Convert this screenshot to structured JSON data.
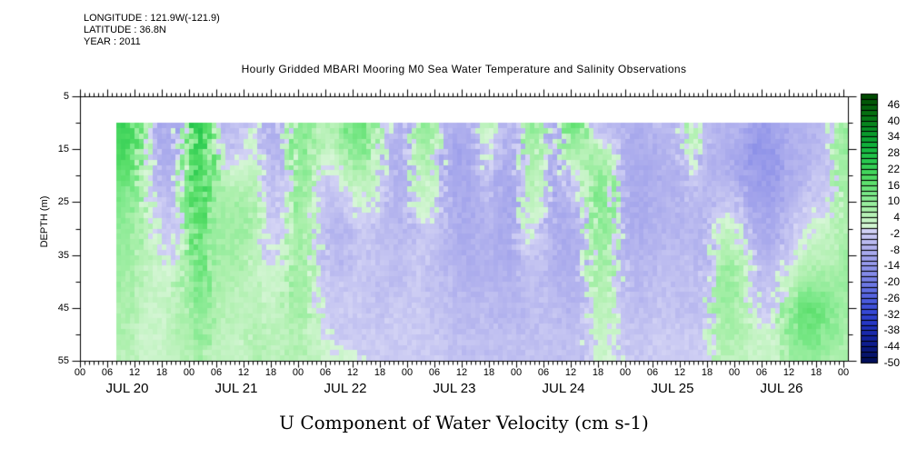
{
  "header": {
    "longitude": "LONGITUDE : 121.9W(-121.9)",
    "latitude": "LATITUDE : 36.8N",
    "year": "YEAR : 2011"
  },
  "title": "Hourly Gridded MBARI Mooring M0 Sea Water Temperature and Salinity Observations",
  "footer_title": "U Component of Water Velocity (cm s-1)",
  "axes": {
    "y_label": "DEPTH (m)",
    "y_ticks": [
      5,
      15,
      25,
      35,
      45,
      55
    ],
    "y_minor_ticks": [
      10,
      20,
      30,
      40,
      50
    ],
    "x_time_labels": [
      "00",
      "06",
      "12",
      "18"
    ],
    "x_final_label": "00",
    "x_date_labels": [
      "JUL 20",
      "JUL 21",
      "JUL 22",
      "JUL 23",
      "JUL 24",
      "JUL 25",
      "JUL 26"
    ]
  },
  "colorbar": {
    "min": -50,
    "max": 50,
    "segment_step": 2,
    "labels": [
      "46",
      "40",
      "34",
      "28",
      "22",
      "16",
      "10",
      "4",
      "-2",
      "-8",
      "-14",
      "-20",
      "-26",
      "-32",
      "-38",
      "-44",
      "-50"
    ]
  },
  "palette": {
    "stops": [
      [
        -50,
        "#000d52"
      ],
      [
        -42,
        "#101f96"
      ],
      [
        -36,
        "#2233c0"
      ],
      [
        -30,
        "#3a4cd8"
      ],
      [
        -24,
        "#5a68e0"
      ],
      [
        -18,
        "#7e85e6"
      ],
      [
        -12,
        "#9a9cea"
      ],
      [
        -6,
        "#b4b4ee"
      ],
      [
        -0.01,
        "#d6d6f5"
      ],
      [
        0,
        "#d8f6d8"
      ],
      [
        6,
        "#aef0ae"
      ],
      [
        12,
        "#7fe98c"
      ],
      [
        18,
        "#55dd66"
      ],
      [
        24,
        "#2ecc52"
      ],
      [
        30,
        "#12b53e"
      ],
      [
        36,
        "#089428"
      ],
      [
        42,
        "#077413"
      ],
      [
        50,
        "#004500"
      ]
    ]
  },
  "chart_data": {
    "type": "heatmap",
    "title": "U Component of Water Velocity (cm s-1)",
    "ylabel": "DEPTH (m)",
    "unit": "cm s-1",
    "ylim": [
      5,
      55
    ],
    "x_axis": "hours since JUL 20 2011 00:00",
    "xlim": [
      0,
      169
    ],
    "x_hours_start": 8,
    "x_hours_step": 3,
    "depths": [
      10,
      15,
      20,
      25,
      30,
      35,
      40,
      45,
      50,
      55
    ],
    "values": [
      [
        22,
        20,
        16,
        12,
        10,
        8,
        8,
        6,
        6,
        4
      ],
      [
        20,
        18,
        14,
        10,
        8,
        8,
        6,
        6,
        4,
        4
      ],
      [
        6,
        4,
        2,
        4,
        4,
        4,
        4,
        2,
        2,
        2
      ],
      [
        -8,
        -8,
        -6,
        -4,
        -2,
        2,
        2,
        2,
        2,
        2
      ],
      [
        -10,
        -8,
        -6,
        -4,
        -2,
        -2,
        2,
        4,
        4,
        4
      ],
      [
        8,
        10,
        10,
        10,
        8,
        8,
        8,
        6,
        6,
        4
      ],
      [
        26,
        24,
        22,
        20,
        18,
        16,
        14,
        12,
        10,
        8
      ],
      [
        10,
        8,
        8,
        8,
        8,
        6,
        6,
        6,
        4,
        4
      ],
      [
        -6,
        -4,
        2,
        6,
        8,
        8,
        6,
        4,
        4,
        2
      ],
      [
        -4,
        -2,
        4,
        8,
        8,
        6,
        4,
        4,
        2,
        2
      ],
      [
        2,
        2,
        4,
        6,
        6,
        4,
        4,
        4,
        6,
        6
      ],
      [
        -8,
        -6,
        -4,
        -4,
        -2,
        -2,
        2,
        2,
        4,
        4
      ],
      [
        -6,
        -6,
        -4,
        -2,
        -2,
        2,
        2,
        4,
        4,
        4
      ],
      [
        12,
        12,
        10,
        10,
        8,
        8,
        8,
        8,
        6,
        6
      ],
      [
        10,
        8,
        8,
        6,
        6,
        6,
        6,
        6,
        4,
        4
      ],
      [
        4,
        2,
        -2,
        -4,
        -4,
        -4,
        -2,
        -2,
        2,
        2
      ],
      [
        6,
        4,
        -2,
        -4,
        -6,
        -6,
        -4,
        -2,
        -2,
        2
      ],
      [
        14,
        10,
        4,
        -2,
        -4,
        -4,
        -2,
        -2,
        -2,
        2
      ],
      [
        16,
        12,
        6,
        2,
        -2,
        -2,
        -2,
        -2,
        -2,
        -2
      ],
      [
        6,
        4,
        2,
        -2,
        -4,
        -4,
        -4,
        -4,
        -2,
        -2
      ],
      [
        -4,
        -6,
        -6,
        -6,
        -4,
        -4,
        -4,
        -2,
        -2,
        -2
      ],
      [
        -8,
        -8,
        -8,
        -6,
        -6,
        -4,
        -4,
        -2,
        -2,
        -2
      ],
      [
        8,
        6,
        4,
        2,
        -2,
        -2,
        -2,
        -2,
        -2,
        -2
      ],
      [
        10,
        8,
        4,
        2,
        -2,
        -4,
        -4,
        -4,
        -2,
        -2
      ],
      [
        -6,
        -8,
        -8,
        -6,
        -6,
        -6,
        -4,
        -4,
        -4,
        -2
      ],
      [
        -8,
        -10,
        -10,
        -8,
        -8,
        -6,
        -6,
        -4,
        -4,
        -4
      ],
      [
        -6,
        -8,
        -8,
        -8,
        -8,
        -8,
        -6,
        -6,
        -4,
        -4
      ],
      [
        4,
        2,
        -2,
        -4,
        -6,
        -6,
        -6,
        -4,
        -4,
        -4
      ],
      [
        -4,
        -6,
        -8,
        -8,
        -8,
        -8,
        -6,
        -6,
        -4,
        -4
      ],
      [
        -6,
        -8,
        -10,
        -10,
        -8,
        -8,
        -6,
        -6,
        -4,
        -4
      ],
      [
        10,
        8,
        6,
        4,
        2,
        -2,
        -4,
        -4,
        -4,
        -4
      ],
      [
        8,
        6,
        4,
        2,
        -2,
        -4,
        -4,
        -4,
        -4,
        -2
      ],
      [
        -8,
        -10,
        -10,
        -8,
        -8,
        -6,
        -6,
        -4,
        -4,
        -4
      ],
      [
        16,
        8,
        -2,
        -6,
        -8,
        -8,
        -6,
        -6,
        -4,
        -4
      ],
      [
        12,
        6,
        2,
        -4,
        -6,
        -6,
        -6,
        -4,
        -4,
        -4
      ],
      [
        -4,
        6,
        12,
        12,
        10,
        8,
        6,
        4,
        2,
        2
      ],
      [
        -6,
        2,
        10,
        10,
        8,
        8,
        6,
        4,
        2,
        2
      ],
      [
        -6,
        -6,
        -8,
        -8,
        -6,
        -6,
        -4,
        -4,
        -2,
        -2
      ],
      [
        -8,
        -8,
        -8,
        -8,
        -8,
        -6,
        -6,
        -4,
        -4,
        -2
      ],
      [
        -6,
        -8,
        -8,
        -8,
        -6,
        -6,
        -4,
        -4,
        -2,
        -2
      ],
      [
        -4,
        -6,
        -6,
        -6,
        -6,
        -4,
        -4,
        -2,
        -2,
        -2
      ],
      [
        -6,
        -6,
        -8,
        -6,
        -6,
        -4,
        -4,
        -4,
        -2,
        -2
      ],
      [
        8,
        4,
        -2,
        -4,
        -6,
        -4,
        -4,
        -4,
        -2,
        -2
      ],
      [
        -4,
        -6,
        -6,
        -6,
        -6,
        -6,
        -4,
        -4,
        -2,
        -2
      ],
      [
        -6,
        -6,
        -6,
        -4,
        2,
        6,
        8,
        8,
        6,
        4
      ],
      [
        -6,
        -8,
        -6,
        -2,
        4,
        8,
        10,
        8,
        6,
        4
      ],
      [
        -8,
        -10,
        -10,
        -8,
        -4,
        2,
        4,
        4,
        4,
        2
      ],
      [
        -12,
        -14,
        -12,
        -10,
        -8,
        -6,
        -4,
        -2,
        2,
        2
      ],
      [
        -10,
        -12,
        -12,
        -10,
        -8,
        -6,
        -4,
        -2,
        2,
        2
      ],
      [
        -8,
        -8,
        -8,
        -6,
        -4,
        -2,
        4,
        8,
        8,
        6
      ],
      [
        -6,
        -6,
        -6,
        -4,
        -2,
        2,
        8,
        14,
        14,
        8
      ],
      [
        -6,
        -6,
        -4,
        -2,
        2,
        4,
        10,
        16,
        14,
        8
      ],
      [
        -4,
        -4,
        -2,
        -2,
        2,
        4,
        8,
        12,
        10,
        6
      ],
      [
        8,
        8,
        8,
        6,
        6,
        6,
        8,
        8,
        8,
        6
      ],
      [
        10,
        10,
        8,
        8,
        8,
        8,
        8,
        8,
        6,
        6
      ]
    ]
  }
}
